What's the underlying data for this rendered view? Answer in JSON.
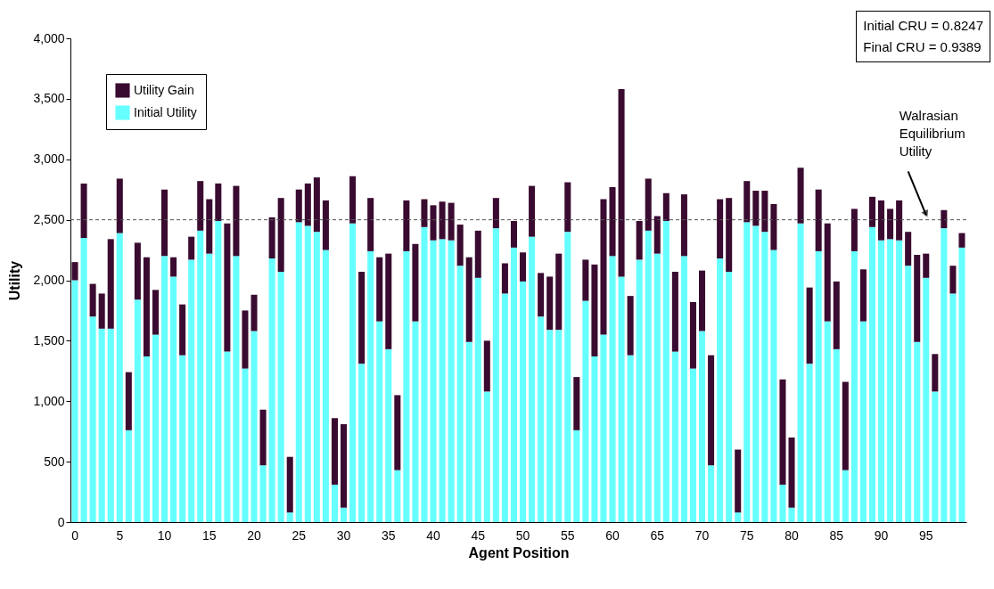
{
  "chart_data": {
    "type": "bar",
    "stacked": true,
    "xlabel": "Agent Position",
    "ylabel": "Utility",
    "categories": [
      "0",
      null,
      null,
      null,
      null,
      "5",
      null,
      null,
      null,
      null,
      "10",
      null,
      null,
      null,
      null,
      "15",
      null,
      null,
      null,
      null,
      "20",
      null,
      null,
      null,
      null,
      "25",
      null,
      null,
      null,
      null,
      "30",
      null,
      null,
      null,
      null,
      "35",
      null,
      null,
      null,
      null,
      "40",
      null,
      null,
      null,
      null,
      "45",
      null,
      null,
      null,
      null,
      "50",
      null,
      null,
      null,
      null,
      "55",
      null,
      null,
      null,
      null,
      "60",
      null,
      null,
      null,
      null,
      "65",
      null,
      null,
      null,
      null,
      "70",
      null,
      null,
      null,
      null,
      "75",
      null,
      null,
      null,
      null,
      "80",
      null,
      null,
      null,
      null,
      "85",
      null,
      null,
      null,
      null,
      "90",
      null,
      null,
      null,
      null,
      "95",
      null,
      null,
      null,
      null
    ],
    "series": [
      {
        "name": "Initial Utility",
        "color": "#66ffff",
        "values": [
          2000,
          2350,
          1700,
          1600,
          1600,
          2390,
          760,
          1840,
          1370,
          1550,
          2200,
          2030,
          1380,
          2170,
          2410,
          2220,
          2490,
          1410,
          2200,
          1270,
          1580,
          470,
          2180,
          2070,
          80,
          2480,
          2450,
          2400,
          2250,
          310,
          120,
          2470,
          1310,
          2240,
          1660,
          1430,
          430,
          2240,
          1660,
          2440,
          2330,
          2340,
          2330,
          2120,
          1490,
          2020,
          1080,
          2430,
          1890,
          2270,
          1990,
          2360,
          1700,
          1590,
          1590,
          2400,
          760,
          1830,
          1370,
          1550,
          2200,
          2030,
          1380,
          2170,
          2410,
          2220,
          2490,
          1410,
          2200,
          1270,
          1580,
          470,
          2180,
          2070,
          80,
          2480,
          2450,
          2400,
          2250,
          310,
          120,
          2470,
          1310,
          2240,
          1660,
          1430,
          430,
          2240,
          1660,
          2440,
          2330,
          2340,
          2330,
          2120,
          1490,
          2020,
          1080,
          2430,
          1890,
          2270
        ]
      },
      {
        "name": "Utility Gain",
        "color": "#3a0b30",
        "values": [
          150,
          450,
          270,
          290,
          740,
          450,
          480,
          470,
          820,
          370,
          550,
          160,
          420,
          190,
          410,
          450,
          310,
          1060,
          580,
          480,
          300,
          460,
          340,
          610,
          460,
          270,
          350,
          450,
          410,
          550,
          690,
          390,
          760,
          440,
          530,
          790,
          620,
          420,
          640,
          230,
          290,
          310,
          310,
          340,
          700,
          390,
          420,
          250,
          250,
          220,
          240,
          420,
          360,
          440,
          630,
          410,
          440,
          340,
          760,
          1120,
          570,
          1550,
          490,
          320,
          430,
          310,
          230,
          660,
          510,
          550,
          500,
          910,
          490,
          610,
          520,
          340,
          290,
          340,
          380,
          870,
          580,
          460,
          630,
          510,
          810,
          560,
          730,
          350,
          430,
          250,
          330,
          250,
          330,
          280,
          720,
          200,
          310,
          150,
          230,
          120
        ]
      }
    ],
    "ylim": [
      0,
      4000
    ],
    "yticks": [
      0,
      500,
      {
        "value": 1000,
        "label": "1,000"
      },
      {
        "value": 1500,
        "label": "1,500"
      },
      {
        "value": 2000,
        "label": "2,000"
      },
      {
        "value": 2500,
        "label": "2,500"
      },
      {
        "value": 3000,
        "label": "3,000"
      },
      {
        "value": 3500,
        "label": "3,500"
      },
      {
        "value": 4000,
        "label": "4,000"
      }
    ],
    "ref_lines": [
      {
        "axis": "y",
        "value": 2500,
        "label": "Walrasian Equilibrium Utility",
        "color": "#555555",
        "line_style": "dashed"
      }
    ],
    "annotations": [
      "Initial CRU = 0.8247",
      "Final CRU = 0.9389"
    ],
    "legend": "top left",
    "grid": false
  }
}
